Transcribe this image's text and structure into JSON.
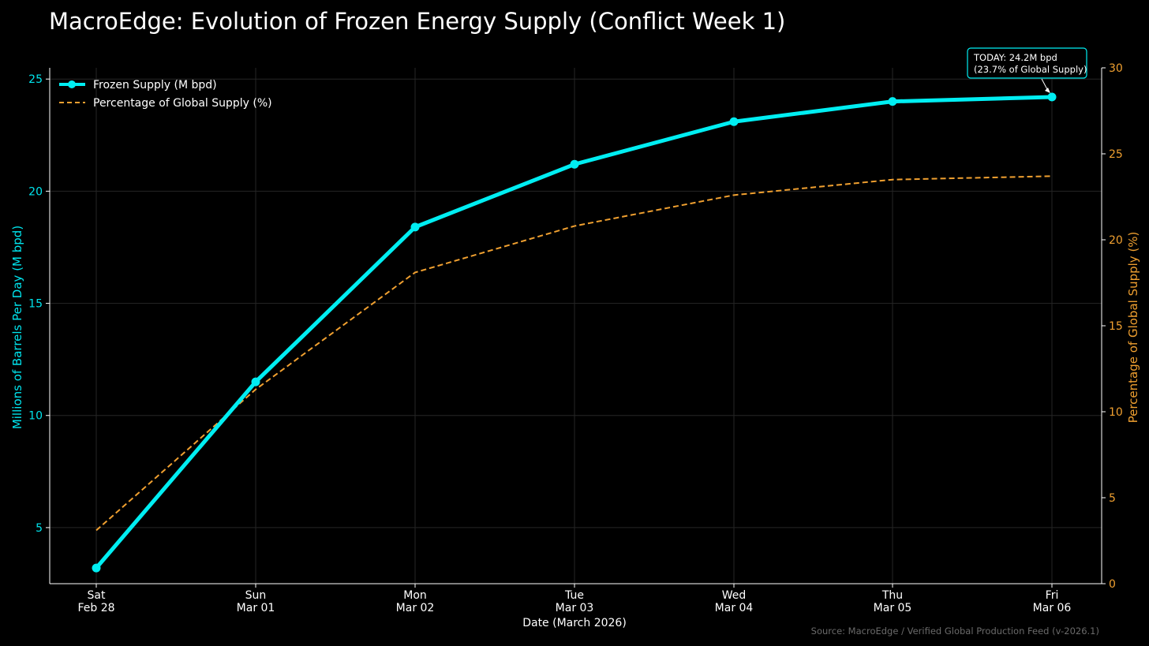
{
  "chart_data": {
    "type": "line",
    "title": "MacroEdge: Evolution of Frozen Energy Supply (Conflict Week 1)",
    "xlabel": "Date (March 2026)",
    "ylabel": "Millions of Barrels Per Day (M bpd)",
    "y2label": "Percentage of Global Supply (%)",
    "categories": [
      [
        "Sat",
        "Feb 28"
      ],
      [
        "Sun",
        "Mar 01"
      ],
      [
        "Mon",
        "Mar 02"
      ],
      [
        "Tue",
        "Mar 03"
      ],
      [
        "Wed",
        "Mar 04"
      ],
      [
        "Thu",
        "Mar 05"
      ],
      [
        "Fri",
        "Mar 06"
      ]
    ],
    "ylim": [
      2.5,
      25.5
    ],
    "y2lim": [
      0,
      30
    ],
    "yticks": [
      5,
      10,
      15,
      20,
      25
    ],
    "y2ticks": [
      0,
      5,
      10,
      15,
      20,
      25,
      30
    ],
    "grid": true,
    "legend_position": "top-left",
    "series": [
      {
        "name": "Frozen Supply (M bpd)",
        "axis": "left",
        "style": "solid",
        "markers": true,
        "color": "#00eef2",
        "values": [
          3.2,
          11.5,
          18.4,
          21.2,
          23.1,
          24.0,
          24.2
        ]
      },
      {
        "name": "Percentage of Global Supply (%)",
        "axis": "right",
        "style": "dashed",
        "markers": false,
        "color": "#f0a030",
        "values": [
          3.1,
          11.3,
          18.1,
          20.8,
          22.6,
          23.5,
          23.7
        ]
      }
    ],
    "annotation": {
      "lines": [
        "TODAY: 24.2M bpd",
        "(23.7% of Global Supply)"
      ],
      "point_index": 6
    },
    "source": "Source: MacroEdge / Verified Global Production Feed (v-2026.1)"
  },
  "colors": {
    "background": "#000000",
    "primary": "#00eef2",
    "secondary": "#f0a030",
    "grid": "#262626",
    "axis": "#ffffff"
  }
}
